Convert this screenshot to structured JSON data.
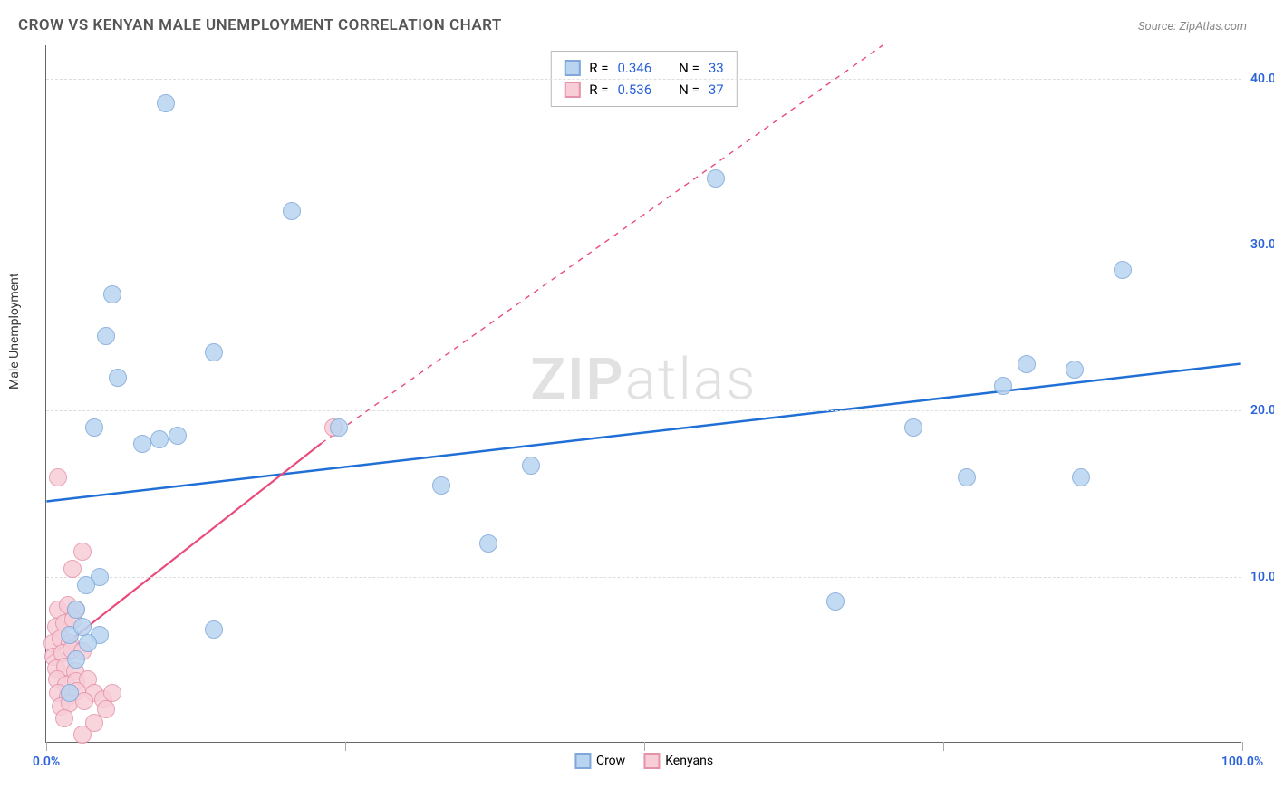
{
  "title": "CROW VS KENYAN MALE UNEMPLOYMENT CORRELATION CHART",
  "source": "Source: ZipAtlas.com",
  "watermark_bold": "ZIP",
  "watermark_light": "atlas",
  "ylabel": "Male Unemployment",
  "xlim": [
    0,
    100
  ],
  "ylim": [
    0,
    42
  ],
  "x_ticks": [
    0,
    25,
    50,
    75,
    100
  ],
  "x_tick_labels": {
    "0": "0.0%",
    "100": "100.0%"
  },
  "y_gridlines": [
    10,
    20,
    30,
    40
  ],
  "y_tick_labels": {
    "10": "10.0%",
    "20": "20.0%",
    "30": "30.0%",
    "40": "40.0%"
  },
  "axis_color": "#666666",
  "grid_color": "#dddddd",
  "tick_label_color": "#2962d9",
  "marker_radius": 10,
  "marker_border_width": 1.5,
  "series": [
    {
      "name": "Crow",
      "fill": "#b9d4f1",
      "stroke": "#7fa8d9",
      "trend_color": "#1f6fd6",
      "trend_dash": "",
      "trend_width": 2.5,
      "trend": {
        "x1": 0,
        "y1": 14.5,
        "x2": 100,
        "y2": 22.8
      },
      "R": "0.346",
      "N": "33",
      "points": [
        [
          10,
          38.5
        ],
        [
          20.5,
          32
        ],
        [
          56,
          34
        ],
        [
          5.5,
          27
        ],
        [
          5,
          24.5
        ],
        [
          14,
          23.5
        ],
        [
          6,
          22
        ],
        [
          4,
          19
        ],
        [
          9.5,
          18.3
        ],
        [
          11,
          18.5
        ],
        [
          4.5,
          10
        ],
        [
          8,
          18
        ],
        [
          24.5,
          19
        ],
        [
          33,
          15.5
        ],
        [
          40.5,
          16.7
        ],
        [
          37,
          12
        ],
        [
          66,
          8.5
        ],
        [
          72.5,
          19
        ],
        [
          77,
          16
        ],
        [
          80,
          21.5
        ],
        [
          82,
          22.8
        ],
        [
          86,
          22.5
        ],
        [
          86.5,
          16
        ],
        [
          90,
          28.5
        ],
        [
          2,
          6.5
        ],
        [
          4.5,
          6.5
        ],
        [
          2.5,
          8
        ],
        [
          2,
          3
        ],
        [
          3.3,
          9.5
        ],
        [
          3.5,
          6
        ],
        [
          2.5,
          5
        ],
        [
          3,
          7
        ],
        [
          14,
          6.8
        ]
      ]
    },
    {
      "name": "Kenyans",
      "fill": "#f7cdd8",
      "stroke": "#e593ab",
      "trend_color": "#e94b7a",
      "trend_dash_solid": {
        "x1": 0,
        "y1": 5,
        "x2": 23,
        "y2": 18
      },
      "trend_dash_dashed": {
        "x1": 23,
        "y1": 18,
        "x2": 70,
        "y2": 42
      },
      "trend_width": 2.2,
      "R": "0.536",
      "N": "37",
      "points": [
        [
          1,
          16
        ],
        [
          3,
          11.5
        ],
        [
          2.2,
          10.5
        ],
        [
          1,
          8
        ],
        [
          1.8,
          8.3
        ],
        [
          2.5,
          8
        ],
        [
          0.8,
          7
        ],
        [
          1.5,
          7.2
        ],
        [
          2.3,
          7.4
        ],
        [
          0.5,
          6
        ],
        [
          1.2,
          6.3
        ],
        [
          2,
          6
        ],
        [
          0.6,
          5.2
        ],
        [
          1.4,
          5.4
        ],
        [
          2.1,
          5.6
        ],
        [
          3,
          5.5
        ],
        [
          0.8,
          4.5
        ],
        [
          1.6,
          4.6
        ],
        [
          2.4,
          4.3
        ],
        [
          0.9,
          3.8
        ],
        [
          1.7,
          3.5
        ],
        [
          2.5,
          3.7
        ],
        [
          3.5,
          3.8
        ],
        [
          1,
          3
        ],
        [
          1.8,
          2.8
        ],
        [
          2.6,
          3.1
        ],
        [
          4,
          3
        ],
        [
          1.2,
          2.2
        ],
        [
          2,
          2.4
        ],
        [
          3.2,
          2.5
        ],
        [
          4.8,
          2.6
        ],
        [
          1.5,
          1.5
        ],
        [
          5,
          2
        ],
        [
          5.5,
          3
        ],
        [
          3,
          0.5
        ],
        [
          4,
          1.2
        ],
        [
          24,
          19
        ]
      ]
    }
  ],
  "legend_top": {
    "r_label": "R =",
    "n_label": "N ="
  },
  "legend_bottom": [
    {
      "label": "Crow",
      "fill": "#b9d4f1",
      "stroke": "#7fa8d9"
    },
    {
      "label": "Kenyans",
      "fill": "#f7cdd8",
      "stroke": "#e593ab"
    }
  ]
}
